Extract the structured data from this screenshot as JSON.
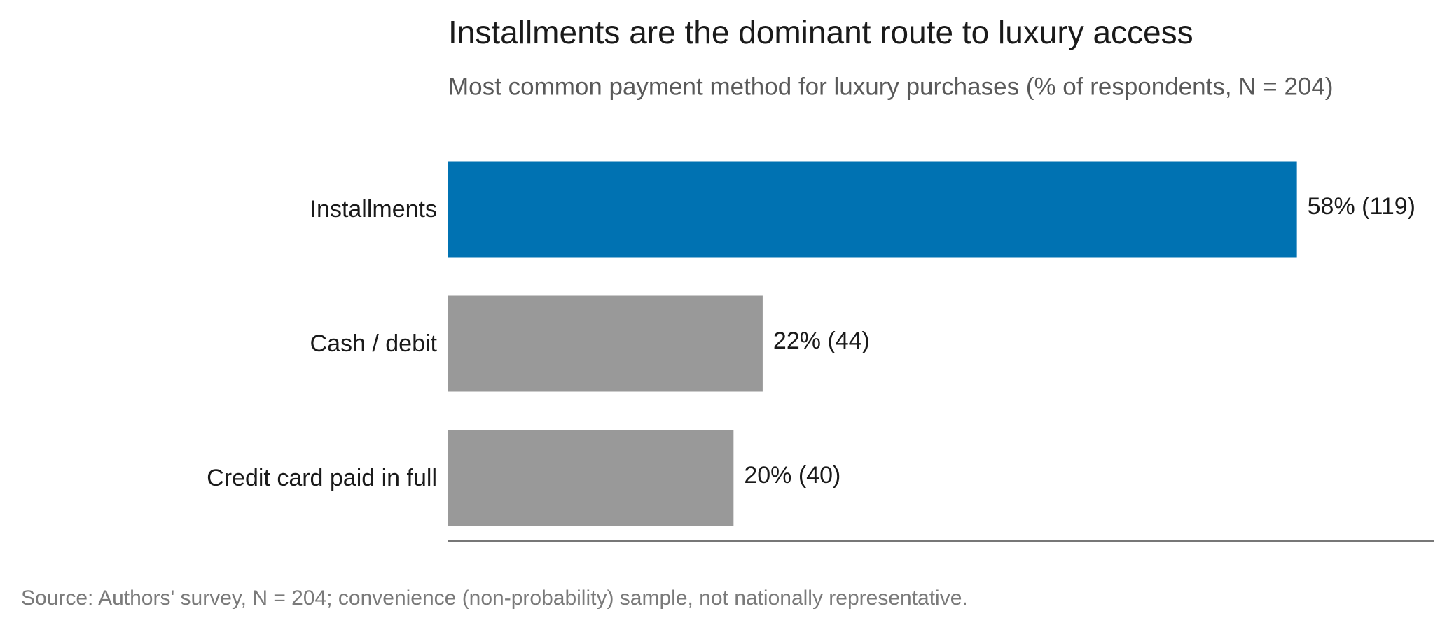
{
  "chart_data": {
    "type": "bar",
    "orientation": "horizontal",
    "title": "Installments are the dominant route to luxury access",
    "subtitle": "Most common payment method for luxury purchases (% of respondents, N = 204)",
    "categories": [
      "Installments",
      "Cash / debit",
      "Credit card paid in full"
    ],
    "values": [
      58.3,
      21.6,
      19.6
    ],
    "value_labels": [
      "58%  (119)",
      "22%  (44)",
      "20%  (40)"
    ],
    "colors": [
      "#0072b2",
      "#999999",
      "#999999"
    ],
    "xlim": [
      0,
      67.7
    ],
    "source": "Source: Authors' survey, N = 204; convenience (non-probability) sample, not nationally representative."
  }
}
